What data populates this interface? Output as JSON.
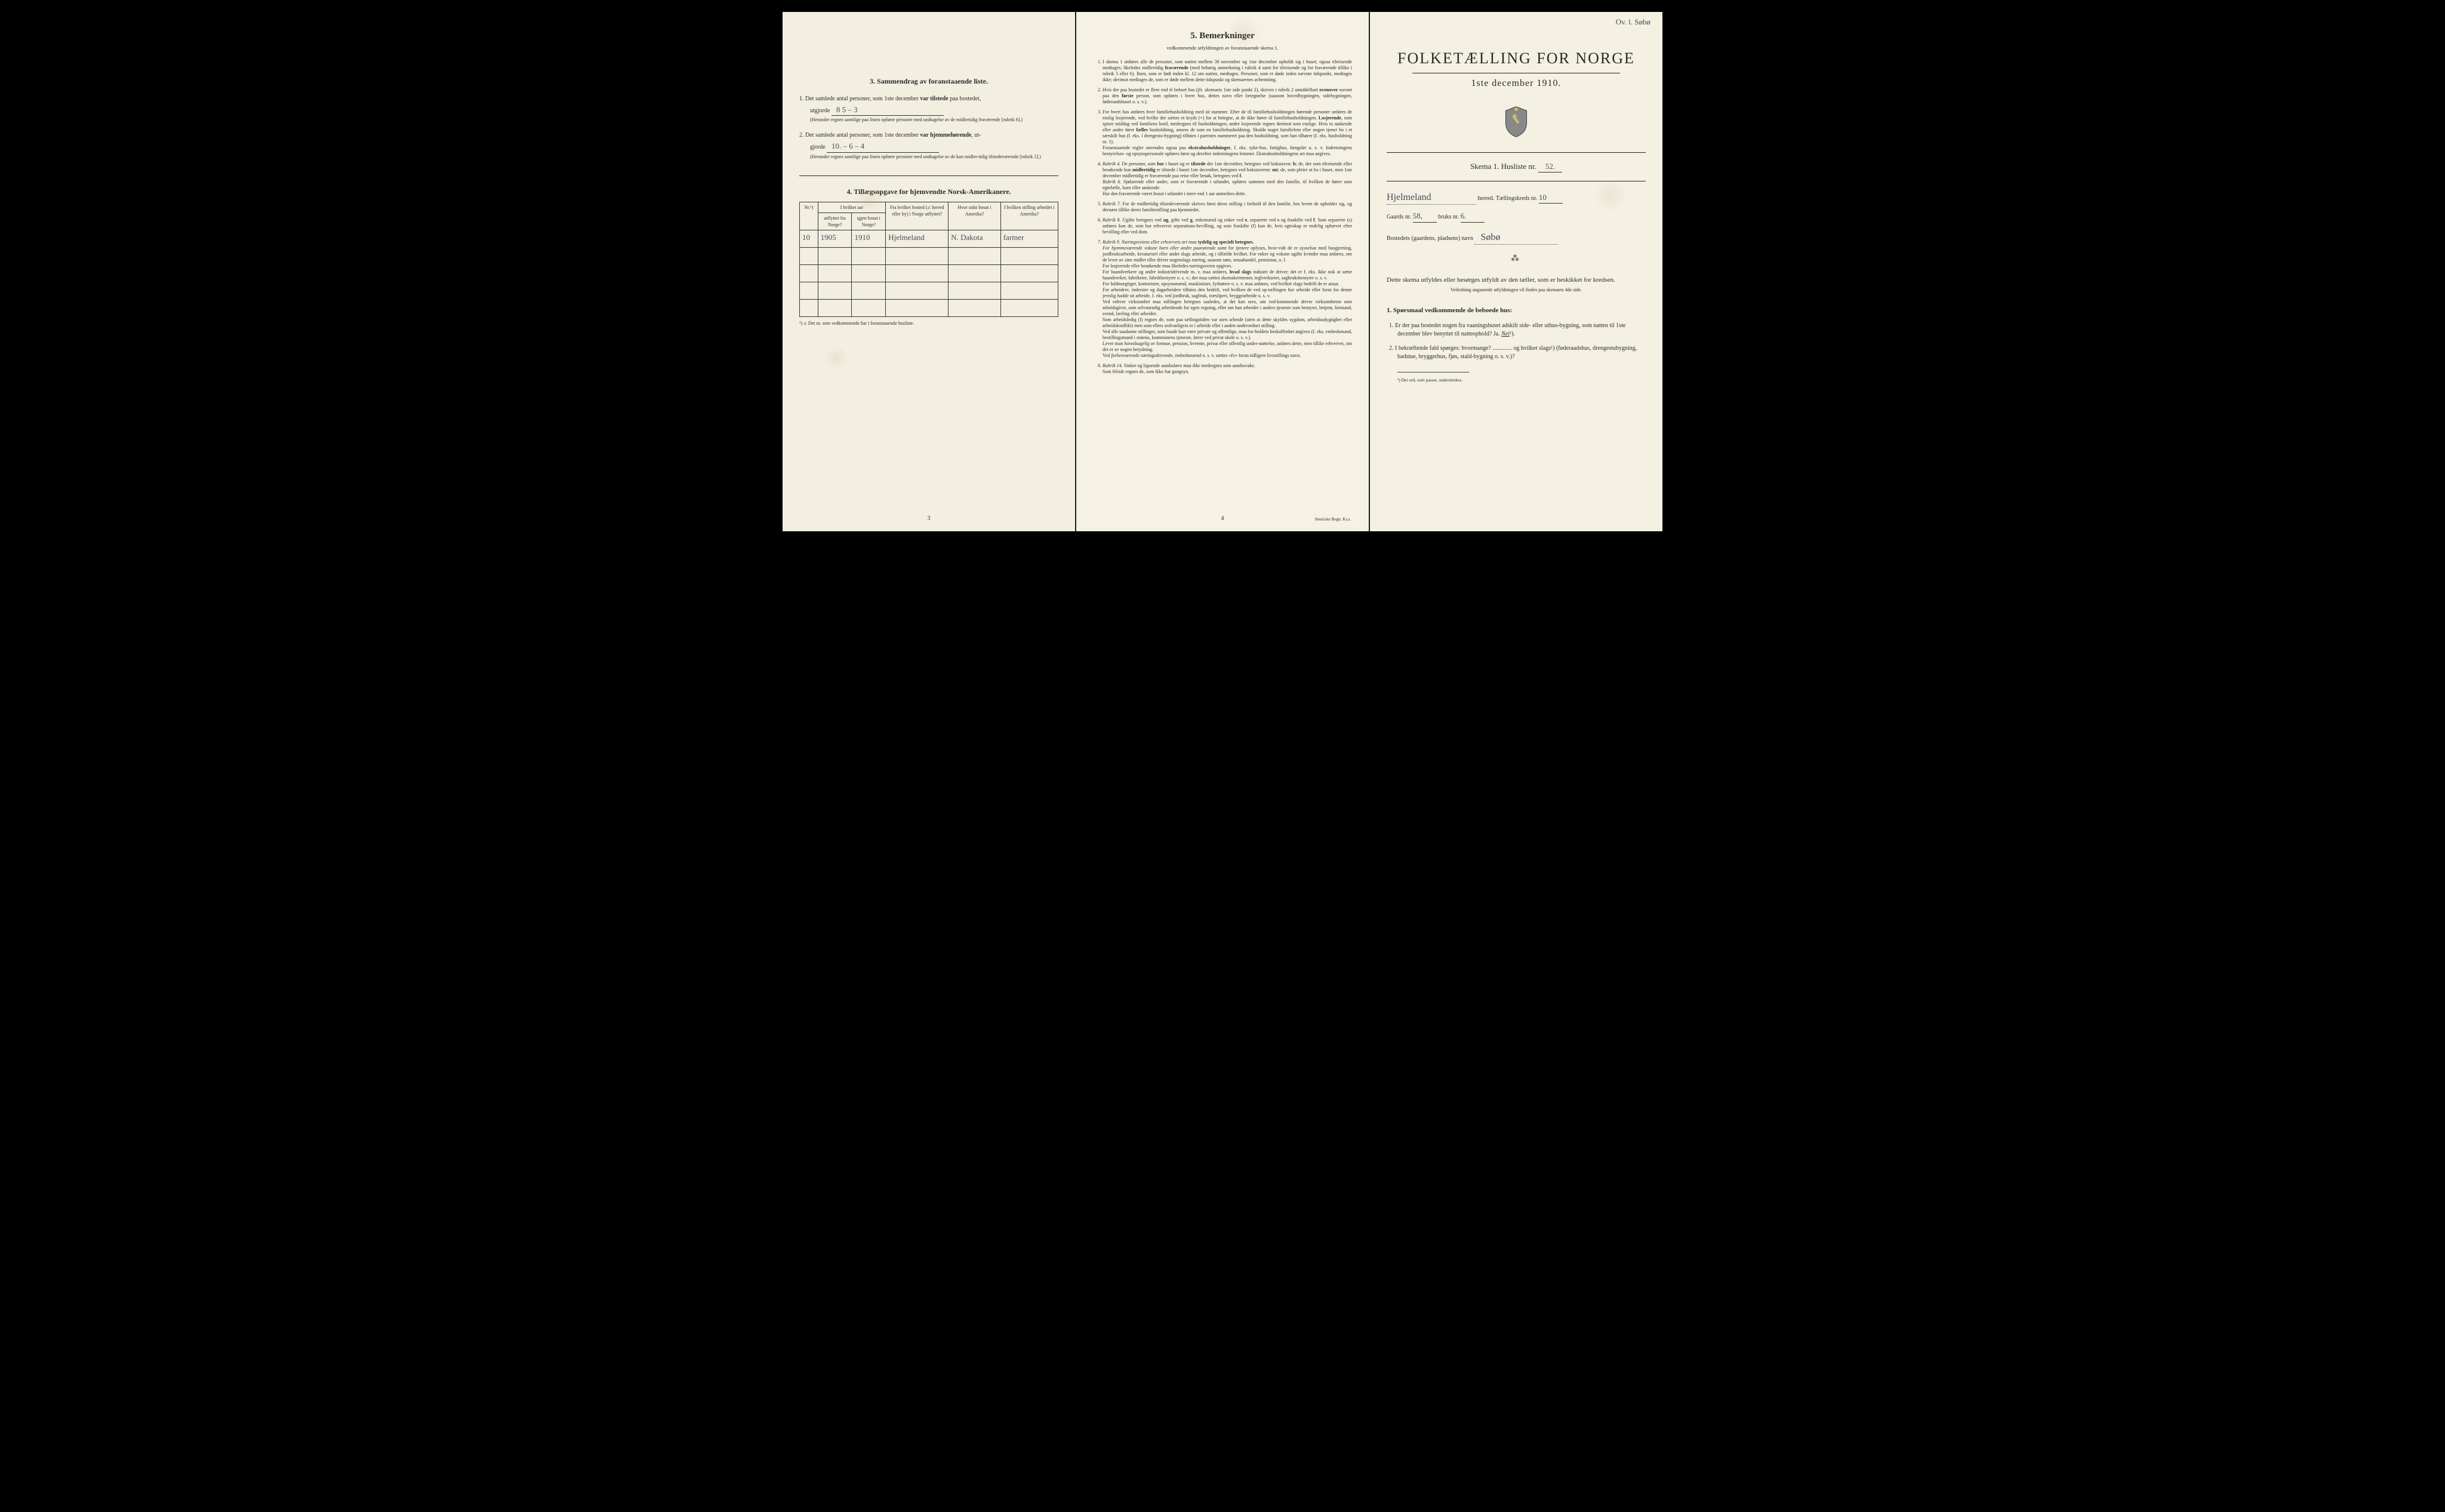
{
  "annotation_top_right": "Ov. l. Søbø",
  "left": {
    "section3_title": "3.   Sammendrag av foranstaaende liste.",
    "q1_prefix": "1.  Det samlede antal personer, som 1ste december ",
    "q1_bold": "var tilstede",
    "q1_suffix": " paa bostedet,",
    "q1_line2": "utgjorde",
    "q1_val": "8       5 – 3",
    "q1_fine": "(Herunder regnes samtlige paa listen opførte personer med undtagelse av de midlertidig fraværende [rubrik 6].)",
    "q2_prefix": "2.  Det samlede antal personer, som 1ste december ",
    "q2_bold": "var hjemmehørende",
    "q2_suffix": ", ut-",
    "q2_line2": "gjorde",
    "q2_val": "10. –   6 – 4",
    "q2_fine": "(Herunder regnes samtlige paa listen opførte personer med undtagelse av de kun midler-tidig tilstedeværende [rubrik 5].)",
    "section4_title": "4.  Tillægsopgave for hjemvendte Norsk-Amerikanere.",
    "table": {
      "headers": {
        "c1": "Nr.¹)",
        "c2a": "I hvilket aar",
        "c2b": "utflyttet fra Norge?",
        "c2c": "igjen bosat i Norge?",
        "c3": "Fra hvilket bosted (ɔ: herred eller by) i Norge utflyttet?",
        "c4": "Hvor sidst bosat i Amerika?",
        "c5": "I hvilken stilling arbeidet i Amerika?"
      },
      "row1": {
        "nr": "10",
        "year_out": "1905",
        "year_back": "1910",
        "from": "Hjelmeland",
        "where": "N. Dakota",
        "job": "farmer"
      }
    },
    "table_footnote": "¹) ɔ: Det nr. som vedkommende har i foranstaaende husliste.",
    "page_num": "3"
  },
  "mid": {
    "title": "5.   Bemerkninger",
    "subtitle": "vedkommende utfyldningen av foranstaaende skema 1.",
    "items": [
      "I skema 1 anføres alle de personer, som natten mellem 30 november og 1ste december opholdt sig i huset; ogsaa tilreisende medtages; likeledes midlertidig <b>fraværende</b> (med behørig anmerkning i rubrik 4 samt for tilreisende og for fraværende tillike i rubrik 5 eller 6). Barn, som er født inden kl. 12 om natten, medtages. Personer, som er døde inden nævnte tidspunkt, medtages ikke; derimot medtages de, som er døde mellem dette tidspunkt og skemaernes avhentning.",
      "Hvis der paa bostedet er flere end ét beboet hus (jfr. skemaets 1ste side punkt 2), skrives i rubrik 2 umiddelbart <b>ovenover</b> navnet paa den <b>første</b> person, som opføres i hvert hus, dettes navn eller betegnelse (saasom hovedbygningen, sidebygningen, føderaadshuset o. s. v.).",
      "For hvert hus anføres hver familiehusholdning med sit nummer. Efter de til familiehusholdningen hørende personer anføres de enslig losjerende, ved hvilke der sættes et kryds (×) for at betegne, at de ikke hører til familiehusholdningen. <b>Losjerende</b>, som spiser middag ved familiens bord, medregnes til husholdningen; andre losjerende regnes derimot som enslige. Hvis to søskende eller andre fører <b>fælles</b> husholdning, ansees de som en familiehusholdning. Skulde noget familielem eller nogen tjener bo i et særskilt hus (f. eks. i drengestu-bygning) tilføies i parentes nummeret paa den husholdning, som han tilhører (f. eks. husholdning nr. 1).<br>Foranstaaende regler anvendes ogsaa paa <b>ekstrahusholdninger</b>, f. eks. syke-hus, fattighus, fængsler o. s. v. Indretningens bestyrelses- og opsynspersonale opføres først og derefter indretningens lemmer. Ekstrahusholdningens art maa angives.",
      "<i>Rubrik 4.</i> De personer, som <b>bor</b> i huset og er <b>tilstede</b> der 1ste december, betegnes ved bokstaven: <b>b</b>; de, der som tilreisende eller besøkende kun <b>midlertidig</b> er tilstede i huset 1ste december, betegnes ved bokstaverne: <b>mt</b>; de, som pleier at bo i huset, men 1ste december midlertidig er fraværende paa reise eller besøk, betegnes ved <b>f</b>.<br><i>Rubrik 6.</i> Sjøfarende eller andre, som er fraværende i utlandet, opføres sammen med den familie, til hvilken de hører som egtefælle, barn eller søskende.<br>Har den fraværende været <i>bosat</i> i utlandet i mere end 1 aar anmerkes dette.",
      "<i>Rubrik 7.</i> For de midlertidig tilstedeværende skrives først deres stilling i forhold til den familie, hos hvem de opholder sig, og dernæst tillike deres familiestilling paa hjemstedet.",
      "<i>Rubrik 8.</i> Ugifte betegnes ved <b>ug</b>, gifte ved <b>g</b>, enkemænd og enker ved <b>e</b>, separerte ved <b>s</b> og fraskilte ved <b>f</b>. Som separerte (s) anføres kun de, som har erhvervet separations-bevilling, og som fraskilte (f) kun de, hvis egteskap er endelig ophævet efter bevilling eller ved dom.",
      "<i>Rubrik 9. Næringsveiens eller erhvervets art maa</i> <b>tydelig og specielt betegnes.</b><br><i>For hjemmeværende voksne barn eller andre paarørende</i> samt for <i>tjenere</i> oplyses, hvor-vidt de er sysselsat med husgjerning, jordbruksarbeide, kreaturstel eller andet slags arbeide, og i tilfælde hvilket. For enker og voksne ugifte kvinder maa anføres, om de lever av sine midler eller driver nogenslags næring, saasom søm, smaahandel, pensionat, o. l.<br>For losjerende eller besøkende maa likeledes næringsveien opgives.<br>For haandverkere og andre industridrivende m. v. maa anføres, <b>hvad slags</b> industri de driver; det er f. eks. ikke nok at sætte haandverker, fabrikeier, fabrikbestyrer o. s. v.; der maa sættes skomakermester, teglverkseier, sagbruksbestyrer o. s. v.<br>For fuldmægtiger, kontorister, opsynsmænd, maskinister, fyrbøtere o. s. v. maa anføres, ved hvilket slags bedrift de er ansat.<br>For arbeidere, inderster og dagarbeidere tilføies den bedrift, ved hvilken de ved op-tællingen <i>har</i> arbeide eller forut for denne jevnlig <i>hadde</i> sit arbeide, f. eks. ved jordbruk, sagbruk, træsliperi, bryggearbeide o. s. v.<br>Ved enhver virksomhet maa stillingen betegnes saaledes, at det kan sees, om ved-kommende driver virksomheten som arbeidsgiver, som selvstændig arbeidende for egen regning, eller om han arbeider i andres tjeneste som bestyrer, betjent, formand, svend, lærling eller arbeider.<br>Som arbeidsledig (l) regnes de, som paa tællingstiden var uten arbeide (uten at dette skyldes sygdom, arbeidsudygtighet eller arbeidskonflikt) men som ellers sedvanligvis er i arbeide eller i anden underordnet stilling.<br>Ved alle saadanne stillinger, som baade kan være private og offentlige, maa for-holdets beskaffenhet angives (f. eks. embedsmand, bestillingsmand i statens, kommunens tjeneste, lærer ved privat skole o. s. v.).<br>Lever man <i>hovedsagelig</i> av formue, pension, livrente, privat eller offentlig under-støttelse, anføres dette, men tillike erhvervet, om det er av nogen betydning.<br>Ved <i>forhenværende</i> næringsdrivende, embedsmænd o. s. v. sættes «fv» foran tidligere livsstillings navn.",
      "<i>Rubrik 14.</i> Sinker og lignende aandssløve maa <i>ikke</i> medregnes som aandssvake.<br>Som <i>blinde</i> regnes de, som ikke har gangsyn."
    ],
    "page_num": "4",
    "printer": "Steen'ske Bogtr. Kr.a."
  },
  "right": {
    "title": "FOLKETÆLLING FOR NORGE",
    "date": "1ste december 1910.",
    "skema_label": "Skema 1.   Husliste nr.",
    "husliste_nr": "52.",
    "herred_val": "Hjelmeland",
    "herred_label": "herred.   Tællingskreds nr.",
    "kreds_nr": "10",
    "gaards_label": "Gaards nr.",
    "gaards_nr": "58,",
    "bruks_label": "bruks nr.",
    "bruks_nr": "6.",
    "bosted_label": "Bostedets (gaardens, pladsens) navn",
    "bosted_val": "Søbø",
    "instr1": "Dette skema utfyldes eller besørges utfyldt av den tæller, som er beskikket for kredsen.",
    "instr2": "Veiledning angaaende utfyldningen vil findes paa skemaets 4de side.",
    "q_header": "1. Spørsmaal vedkommende de beboede hus:",
    "q1": "1.  Er der paa bostedet nogen fra vaaningshuset adskilt side- eller uthus-bygning, som natten til 1ste december blev benyttet til natteophold?   Ja.   ",
    "q1_answer": "Nei",
    "q1_sup": "¹).",
    "q2": "2.  I bekræftende fald spørges: hvormange? ............. og hvilket slags¹) (føderaadshus, drengestubygning, badstue, bryggerhus, fjøs, stald-bygning o. s. v.)?",
    "footnote": "¹) Det ord, som passer, understrekes."
  }
}
